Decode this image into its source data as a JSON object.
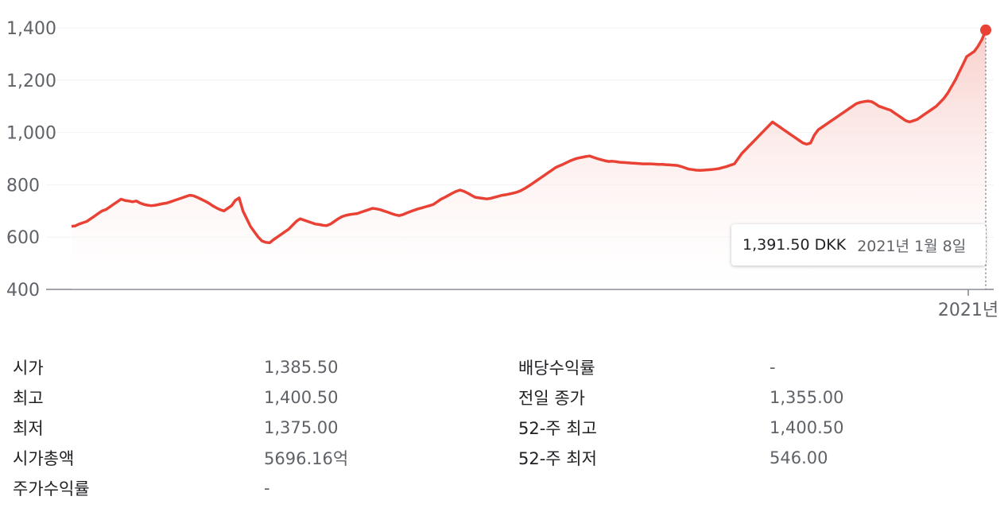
{
  "chart_data": {
    "type": "area",
    "currency": "DKK",
    "y_ticks": [
      "1,400",
      "1,200",
      "1,000",
      "800",
      "600",
      "400"
    ],
    "ylim": [
      400,
      1400
    ],
    "x_tick_label": "2021년",
    "values": [
      641,
      643,
      650,
      655,
      660,
      670,
      680,
      690,
      700,
      705,
      715,
      725,
      735,
      745,
      740,
      738,
      735,
      738,
      730,
      725,
      722,
      720,
      722,
      725,
      728,
      730,
      735,
      740,
      745,
      750,
      755,
      760,
      758,
      752,
      745,
      738,
      730,
      720,
      712,
      705,
      700,
      710,
      720,
      740,
      750,
      700,
      670,
      640,
      620,
      600,
      585,
      580,
      578,
      590,
      600,
      610,
      620,
      630,
      645,
      660,
      670,
      665,
      660,
      655,
      650,
      648,
      645,
      644,
      650,
      660,
      670,
      678,
      683,
      686,
      688,
      690,
      695,
      700,
      705,
      710,
      708,
      705,
      700,
      695,
      690,
      685,
      682,
      686,
      692,
      698,
      703,
      708,
      712,
      716,
      720,
      725,
      735,
      745,
      752,
      760,
      768,
      775,
      780,
      775,
      768,
      760,
      752,
      750,
      748,
      746,
      748,
      752,
      756,
      760,
      762,
      765,
      768,
      772,
      778,
      786,
      795,
      805,
      815,
      825,
      835,
      845,
      855,
      865,
      872,
      878,
      885,
      892,
      898,
      902,
      905,
      908,
      910,
      905,
      900,
      896,
      892,
      889,
      890,
      888,
      886,
      885,
      884,
      883,
      882,
      881,
      880,
      880,
      880,
      879,
      878,
      878,
      877,
      876,
      875,
      874,
      870,
      865,
      860,
      858,
      856,
      855,
      856,
      857,
      858,
      860,
      862,
      866,
      870,
      875,
      880,
      900,
      920,
      935,
      950,
      965,
      980,
      995,
      1010,
      1025,
      1040,
      1030,
      1020,
      1010,
      1000,
      990,
      980,
      970,
      960,
      955,
      960,
      990,
      1010,
      1020,
      1030,
      1040,
      1050,
      1060,
      1070,
      1080,
      1090,
      1100,
      1110,
      1115,
      1118,
      1120,
      1118,
      1110,
      1100,
      1095,
      1090,
      1085,
      1075,
      1065,
      1055,
      1045,
      1040,
      1045,
      1050,
      1060,
      1070,
      1080,
      1090,
      1100,
      1115,
      1130,
      1150,
      1175,
      1200,
      1230,
      1260,
      1290,
      1300,
      1310,
      1330,
      1355,
      1391.5
    ],
    "highlight": {
      "value": "1,391.50 DKK",
      "date": "2021년 1월 8일"
    },
    "colors": {
      "line": "#e94235",
      "fill_top": "#f7c9c4",
      "fill_bottom": "#ffffff",
      "grid": "#f1f3f4",
      "axis": "#80868b"
    }
  },
  "stats": [
    {
      "label": "시가",
      "value": "1,385.50"
    },
    {
      "label": "최고",
      "value": "1,400.50"
    },
    {
      "label": "최저",
      "value": "1,375.00"
    },
    {
      "label": "시가총액",
      "value": "5696.16억"
    },
    {
      "label": "주가수익률",
      "value": "-"
    },
    {
      "label": "배당수익률",
      "value": "-"
    },
    {
      "label": "전일 종가",
      "value": "1,355.00"
    },
    {
      "label": "52-주 최고",
      "value": "1,400.50"
    },
    {
      "label": "52-주 최저",
      "value": "546.00"
    }
  ]
}
